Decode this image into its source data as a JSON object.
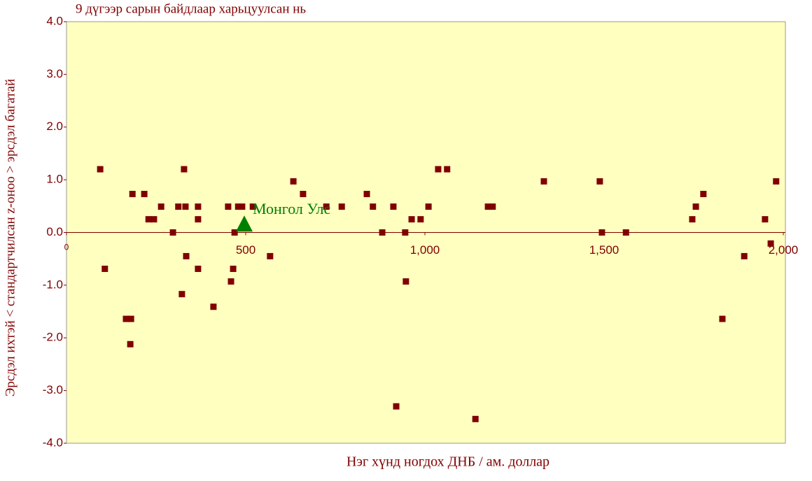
{
  "chart_data": {
    "type": "scatter",
    "title": "9 дүгээр сарын байдлаар харьцуулсан нь",
    "xlabel": "Нэг хүнд ногдох ДНБ / ам. доллар",
    "ylabel": "Эрсдэл ихтэй < стандартчилсан z-оноо > эрсдэл багатай",
    "xlim": [
      0,
      2000
    ],
    "ylim": [
      -4,
      4
    ],
    "xticks": [
      0,
      500,
      {
        "value": 1000,
        "label": "1,000"
      },
      {
        "value": 1500,
        "label": "1,500"
      },
      {
        "value": 2000,
        "label": "2,000"
      }
    ],
    "yticks": [
      {
        "value": 4,
        "label": "4.0"
      },
      {
        "value": 3,
        "label": "3.0"
      },
      {
        "value": 2,
        "label": "2.0"
      },
      {
        "value": 1,
        "label": "1.0"
      },
      {
        "value": 0,
        "label": "0.0"
      },
      {
        "value": -1,
        "label": "-1.0"
      },
      {
        "value": -2,
        "label": "-2.0"
      },
      {
        "value": -3,
        "label": "-3.0"
      },
      {
        "value": -4,
        "label": "-4.0"
      }
    ],
    "background": "#ffffc0",
    "series": [
      {
        "color": "#800000",
        "marker": "square",
        "x": [
          94,
          107,
          166,
          180,
          178,
          184,
          217,
          229,
          244,
          264,
          297,
          312,
          322,
          328,
          332,
          334,
          367,
          367,
          367,
          410,
          451,
          459,
          465,
          469,
          479,
          490,
          520,
          568,
          633,
          660,
          725,
          768,
          838,
          855,
          881,
          912,
          920,
          945,
          947,
          963,
          988,
          1010,
          1037,
          1062,
          1141,
          1176,
          1189,
          1332,
          1488,
          1494,
          1561,
          1746,
          1756,
          1777,
          1830,
          1891,
          1949,
          1965,
          1980
        ],
        "values": [
          1.2,
          -0.69,
          -1.64,
          -1.64,
          -2.12,
          0.73,
          0.73,
          0.25,
          0.25,
          0.49,
          0.0,
          0.49,
          -1.17,
          1.2,
          0.49,
          -0.45,
          0.49,
          0.25,
          -0.69,
          -1.41,
          0.49,
          -0.93,
          -0.69,
          0.0,
          0.49,
          0.49,
          0.49,
          -0.45,
          0.97,
          0.73,
          0.49,
          0.49,
          0.73,
          0.49,
          0.0,
          0.49,
          -3.3,
          0.0,
          -0.93,
          0.25,
          0.25,
          0.49,
          1.2,
          1.2,
          -3.54,
          0.49,
          0.49,
          0.97,
          0.97,
          0.0,
          0.0,
          0.25,
          0.49,
          0.73,
          -1.64,
          -0.45,
          0.25,
          -0.21,
          0.97
        ]
      },
      {
        "name": "Монгол Улс",
        "color": "#008000",
        "marker": "triangle",
        "x": [
          496
        ],
        "values": [
          0.15
        ]
      }
    ]
  }
}
